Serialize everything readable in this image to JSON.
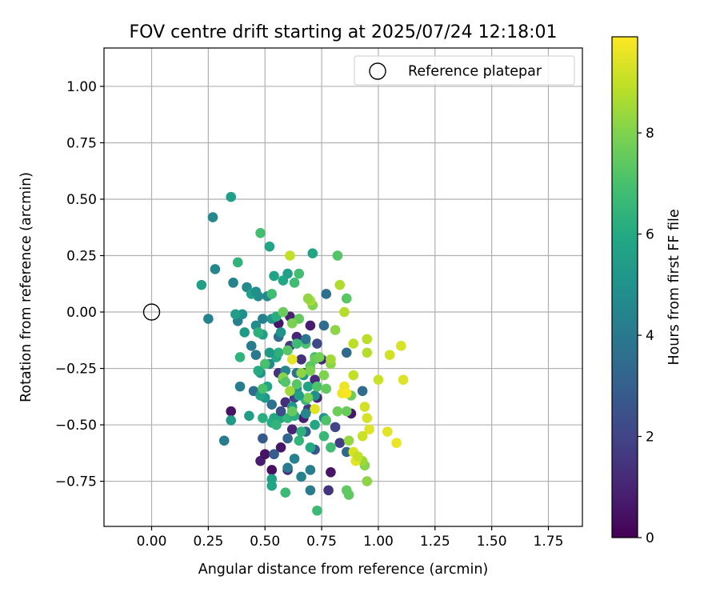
{
  "chart_data": {
    "type": "scatter",
    "title": "FOV centre drift starting at 2025/07/24 12:18:01",
    "xlabel": "Angular distance from reference (arcmin)",
    "ylabel": "Rotation from reference (arcmin)",
    "xlim": [
      -0.21,
      1.9
    ],
    "ylim": [
      -0.95,
      1.17
    ],
    "xticks": [
      0.0,
      0.25,
      0.5,
      0.75,
      1.0,
      1.25,
      1.5,
      1.75
    ],
    "xtick_labels": [
      "0.00",
      "0.25",
      "0.50",
      "0.75",
      "1.00",
      "1.25",
      "1.50",
      "1.75"
    ],
    "yticks": [
      -0.75,
      -0.5,
      -0.25,
      0.0,
      0.25,
      0.5,
      0.75,
      1.0
    ],
    "ytick_labels": [
      "−0.75",
      "−0.50",
      "−0.25",
      "0.00",
      "0.25",
      "0.50",
      "0.75",
      "1.00"
    ],
    "grid": true,
    "legend": {
      "location": "top-right",
      "entries": [
        {
          "label": "Reference platepar",
          "marker": "open-circle"
        }
      ]
    },
    "reference_point": {
      "x": 0.0,
      "y": 0.0
    },
    "colorbar": {
      "label": "Hours from first FF file",
      "colormap": "viridis",
      "range": [
        0,
        9.9
      ],
      "ticks": [
        0,
        2,
        4,
        6,
        8
      ],
      "tick_labels": [
        "0",
        "2",
        "4",
        "6",
        "8"
      ]
    },
    "series": [
      {
        "points": [
          {
            "x": 0.35,
            "y": -0.44,
            "c": 0.5
          },
          {
            "x": 0.48,
            "y": -0.66,
            "c": 0.8
          },
          {
            "x": 0.5,
            "y": -0.63,
            "c": 0.5
          },
          {
            "x": 0.53,
            "y": -0.7,
            "c": 0.4
          },
          {
            "x": 0.57,
            "y": -0.6,
            "c": 0.6
          },
          {
            "x": 0.54,
            "y": -0.48,
            "c": 0.7
          },
          {
            "x": 0.62,
            "y": -0.52,
            "c": 1.0
          },
          {
            "x": 0.6,
            "y": -0.7,
            "c": 1.2
          },
          {
            "x": 0.67,
            "y": -0.47,
            "c": 0.8
          },
          {
            "x": 0.79,
            "y": -0.71,
            "c": 0.5
          },
          {
            "x": 0.78,
            "y": -0.79,
            "c": 1.5
          },
          {
            "x": 0.88,
            "y": -0.45,
            "c": 0.6
          },
          {
            "x": 0.73,
            "y": -0.38,
            "c": 1.0
          },
          {
            "x": 0.75,
            "y": -0.21,
            "c": 1.1
          },
          {
            "x": 0.67,
            "y": -0.27,
            "c": 0.9
          },
          {
            "x": 0.58,
            "y": -0.27,
            "c": 0.7
          },
          {
            "x": 0.7,
            "y": -0.06,
            "c": 0.8
          },
          {
            "x": 0.56,
            "y": -0.05,
            "c": 0.6
          },
          {
            "x": 0.61,
            "y": -0.02,
            "c": 0.9
          },
          {
            "x": 0.64,
            "y": -0.11,
            "c": 1.1
          },
          {
            "x": 0.48,
            "y": -0.36,
            "c": 1.3
          },
          {
            "x": 0.83,
            "y": -0.58,
            "c": 1.8
          },
          {
            "x": 0.81,
            "y": -0.51,
            "c": 2.0
          },
          {
            "x": 0.61,
            "y": -0.15,
            "c": 1.6
          },
          {
            "x": 0.66,
            "y": -0.21,
            "c": 1.4
          },
          {
            "x": 0.69,
            "y": -0.43,
            "c": 1.7
          },
          {
            "x": 0.56,
            "y": -0.27,
            "c": 1.5
          },
          {
            "x": 0.63,
            "y": -0.38,
            "c": 1.9
          },
          {
            "x": 0.72,
            "y": -0.3,
            "c": 1.2
          },
          {
            "x": 0.59,
            "y": -0.4,
            "c": 1.3
          },
          {
            "x": 0.49,
            "y": -0.56,
            "c": 2.8
          },
          {
            "x": 0.54,
            "y": -0.63,
            "c": 2.9
          },
          {
            "x": 0.6,
            "y": -0.56,
            "c": 3.2
          },
          {
            "x": 0.68,
            "y": -0.53,
            "c": 3.0
          },
          {
            "x": 0.72,
            "y": -0.61,
            "c": 2.7
          },
          {
            "x": 0.86,
            "y": -0.62,
            "c": 3.3
          },
          {
            "x": 0.93,
            "y": -0.35,
            "c": 3.4
          },
          {
            "x": 0.76,
            "y": -0.06,
            "c": 3.5
          },
          {
            "x": 0.77,
            "y": 0.08,
            "c": 3.6
          },
          {
            "x": 0.86,
            "y": -0.18,
            "c": 3.4
          },
          {
            "x": 0.45,
            "y": -0.35,
            "c": 3.6
          },
          {
            "x": 0.53,
            "y": -0.41,
            "c": 3.7
          },
          {
            "x": 0.56,
            "y": -0.11,
            "c": 3.5
          },
          {
            "x": 0.64,
            "y": -0.27,
            "c": 3.8
          },
          {
            "x": 0.6,
            "y": -0.69,
            "c": 4.0
          },
          {
            "x": 0.66,
            "y": -0.73,
            "c": 4.3
          },
          {
            "x": 0.7,
            "y": -0.79,
            "c": 4.1
          },
          {
            "x": 0.7,
            "y": -0.7,
            "c": 4.2
          },
          {
            "x": 0.32,
            "y": -0.57,
            "c": 4.1
          },
          {
            "x": 0.63,
            "y": -0.65,
            "c": 4.4
          },
          {
            "x": 0.25,
            "y": -0.03,
            "c": 4.4
          },
          {
            "x": 0.38,
            "y": -0.04,
            "c": 4.3
          },
          {
            "x": 0.44,
            "y": -0.15,
            "c": 4.1
          },
          {
            "x": 0.46,
            "y": -0.19,
            "c": 4.0
          },
          {
            "x": 0.39,
            "y": -0.33,
            "c": 4.2
          },
          {
            "x": 0.49,
            "y": -0.03,
            "c": 4.3
          },
          {
            "x": 0.36,
            "y": 0.13,
            "c": 4.4
          },
          {
            "x": 0.27,
            "y": 0.42,
            "c": 4.6
          },
          {
            "x": 0.28,
            "y": 0.19,
            "c": 4.6
          },
          {
            "x": 0.42,
            "y": 0.11,
            "c": 4.7
          },
          {
            "x": 0.47,
            "y": 0.07,
            "c": 4.8
          },
          {
            "x": 0.51,
            "y": 0.07,
            "c": 4.6
          },
          {
            "x": 0.4,
            "y": -0.01,
            "c": 4.9
          },
          {
            "x": 0.46,
            "y": -0.06,
            "c": 4.7
          },
          {
            "x": 0.52,
            "y": -0.23,
            "c": 4.6
          },
          {
            "x": 0.55,
            "y": -0.2,
            "c": 4.8
          },
          {
            "x": 0.59,
            "y": -0.26,
            "c": 4.5
          },
          {
            "x": 0.64,
            "y": -0.34,
            "c": 4.7
          },
          {
            "x": 0.68,
            "y": -0.45,
            "c": 4.5
          },
          {
            "x": 0.72,
            "y": -0.37,
            "c": 4.9
          },
          {
            "x": 0.76,
            "y": -0.47,
            "c": 5.0
          },
          {
            "x": 0.57,
            "y": -0.09,
            "c": 5.0
          },
          {
            "x": 0.53,
            "y": -0.03,
            "c": 5.1
          },
          {
            "x": 0.55,
            "y": -0.5,
            "c": 5.0
          },
          {
            "x": 0.5,
            "y": -0.38,
            "c": 5.2
          },
          {
            "x": 0.48,
            "y": -0.27,
            "c": 5.1
          },
          {
            "x": 0.62,
            "y": -0.42,
            "c": 5.2
          },
          {
            "x": 0.67,
            "y": -0.28,
            "c": 5.3
          },
          {
            "x": 0.35,
            "y": -0.48,
            "c": 5.4
          },
          {
            "x": 0.43,
            "y": -0.46,
            "c": 5.5
          },
          {
            "x": 0.53,
            "y": -0.74,
            "c": 5.6
          },
          {
            "x": 0.22,
            "y": 0.12,
            "c": 5.6
          },
          {
            "x": 0.35,
            "y": 0.51,
            "c": 5.6
          },
          {
            "x": 0.37,
            "y": -0.01,
            "c": 5.5
          },
          {
            "x": 0.41,
            "y": -0.09,
            "c": 5.4
          },
          {
            "x": 0.44,
            "y": 0.08,
            "c": 5.7
          },
          {
            "x": 0.49,
            "y": -0.1,
            "c": 5.6
          },
          {
            "x": 0.52,
            "y": 0.29,
            "c": 5.8
          },
          {
            "x": 0.54,
            "y": 0.16,
            "c": 5.7
          },
          {
            "x": 0.58,
            "y": 0.14,
            "c": 5.9
          },
          {
            "x": 0.6,
            "y": 0.17,
            "c": 5.6
          },
          {
            "x": 0.55,
            "y": -0.2,
            "c": 5.9
          },
          {
            "x": 0.58,
            "y": -0.3,
            "c": 5.8
          },
          {
            "x": 0.48,
            "y": -0.37,
            "c": 5.7
          },
          {
            "x": 0.51,
            "y": -0.33,
            "c": 5.9
          },
          {
            "x": 0.71,
            "y": 0.26,
            "c": 5.8
          },
          {
            "x": 0.69,
            "y": -0.33,
            "c": 5.7
          },
          {
            "x": 0.72,
            "y": -0.5,
            "c": 5.9
          },
          {
            "x": 0.53,
            "y": -0.77,
            "c": 5.8
          },
          {
            "x": 0.54,
            "y": -0.47,
            "c": 6.0
          },
          {
            "x": 0.53,
            "y": -0.49,
            "c": 6.1
          },
          {
            "x": 0.49,
            "y": -0.47,
            "c": 6.2
          },
          {
            "x": 0.57,
            "y": -0.47,
            "c": 6.0
          },
          {
            "x": 0.55,
            "y": -0.02,
            "c": 6.2
          },
          {
            "x": 0.38,
            "y": 0.22,
            "c": 6.4
          },
          {
            "x": 0.39,
            "y": -0.2,
            "c": 6.4
          },
          {
            "x": 0.47,
            "y": -0.09,
            "c": 6.3
          },
          {
            "x": 0.6,
            "y": -0.47,
            "c": 6.5
          },
          {
            "x": 0.56,
            "y": -0.18,
            "c": 6.3
          },
          {
            "x": 0.55,
            "y": -0.5,
            "c": 6.4
          },
          {
            "x": 0.63,
            "y": -0.46,
            "c": 6.2
          },
          {
            "x": 0.65,
            "y": -0.57,
            "c": 6.5
          },
          {
            "x": 0.73,
            "y": -0.88,
            "c": 6.7
          },
          {
            "x": 0.59,
            "y": -0.8,
            "c": 6.7
          },
          {
            "x": 0.79,
            "y": -0.6,
            "c": 6.8
          },
          {
            "x": 0.64,
            "y": -0.14,
            "c": 6.7
          },
          {
            "x": 0.76,
            "y": -0.55,
            "c": 6.6
          },
          {
            "x": 0.68,
            "y": -0.39,
            "c": 6.6
          },
          {
            "x": 0.72,
            "y": -0.2,
            "c": 6.9
          },
          {
            "x": 0.48,
            "y": 0.35,
            "c": 6.9
          },
          {
            "x": 0.53,
            "y": 0.08,
            "c": 6.8
          },
          {
            "x": 0.65,
            "y": 0.17,
            "c": 6.9
          },
          {
            "x": 0.63,
            "y": 0.13,
            "c": 6.8
          },
          {
            "x": 0.49,
            "y": -0.34,
            "c": 7.0
          },
          {
            "x": 0.5,
            "y": -0.23,
            "c": 7.0
          },
          {
            "x": 0.68,
            "y": -0.14,
            "c": 7.0
          },
          {
            "x": 0.73,
            "y": -0.33,
            "c": 7.1
          },
          {
            "x": 0.77,
            "y": -0.48,
            "c": 7.1
          },
          {
            "x": 0.82,
            "y": 0.25,
            "c": 7.2
          },
          {
            "x": 0.86,
            "y": 0.06,
            "c": 7.3
          },
          {
            "x": 0.86,
            "y": -0.79,
            "c": 7.4
          },
          {
            "x": 0.87,
            "y": -0.81,
            "c": 7.4
          },
          {
            "x": 0.62,
            "y": -0.44,
            "c": 7.5
          },
          {
            "x": 0.64,
            "y": -0.32,
            "c": 7.3
          },
          {
            "x": 0.58,
            "y": 0.0,
            "c": 7.6
          },
          {
            "x": 0.72,
            "y": -0.21,
            "c": 7.6
          },
          {
            "x": 0.65,
            "y": -0.03,
            "c": 7.5
          },
          {
            "x": 0.7,
            "y": -0.24,
            "c": 7.4
          },
          {
            "x": 0.77,
            "y": -0.34,
            "c": 7.5
          },
          {
            "x": 0.86,
            "y": -0.44,
            "c": 7.6
          },
          {
            "x": 0.82,
            "y": -0.44,
            "c": 7.7
          },
          {
            "x": 0.88,
            "y": -0.37,
            "c": 7.7
          },
          {
            "x": 0.69,
            "y": -0.38,
            "c": 7.8
          },
          {
            "x": 0.62,
            "y": -0.05,
            "c": 7.9
          },
          {
            "x": 0.74,
            "y": -0.2,
            "c": 7.8
          },
          {
            "x": 0.71,
            "y": 0.03,
            "c": 8.0
          },
          {
            "x": 0.76,
            "y": -0.28,
            "c": 8.0
          },
          {
            "x": 0.79,
            "y": -0.23,
            "c": 8.1
          },
          {
            "x": 0.81,
            "y": -0.08,
            "c": 8.2
          },
          {
            "x": 0.94,
            "y": -0.68,
            "c": 8.1
          },
          {
            "x": 0.95,
            "y": -0.75,
            "c": 8.2
          },
          {
            "x": 0.87,
            "y": -0.57,
            "c": 8.3
          },
          {
            "x": 0.93,
            "y": -0.66,
            "c": 8.4
          },
          {
            "x": 0.83,
            "y": 0.12,
            "c": 8.7
          },
          {
            "x": 0.85,
            "y": 0.0,
            "c": 8.8
          },
          {
            "x": 0.89,
            "y": -0.14,
            "c": 8.9
          },
          {
            "x": 0.95,
            "y": -0.12,
            "c": 8.9
          },
          {
            "x": 0.95,
            "y": -0.18,
            "c": 8.8
          },
          {
            "x": 0.89,
            "y": -0.28,
            "c": 9.0
          },
          {
            "x": 1.0,
            "y": -0.3,
            "c": 9.1
          },
          {
            "x": 1.05,
            "y": -0.19,
            "c": 9.2
          },
          {
            "x": 1.1,
            "y": -0.15,
            "c": 9.3
          },
          {
            "x": 1.11,
            "y": -0.3,
            "c": 9.4
          },
          {
            "x": 1.04,
            "y": -0.53,
            "c": 9.5
          },
          {
            "x": 1.08,
            "y": -0.58,
            "c": 9.6
          },
          {
            "x": 0.94,
            "y": -0.42,
            "c": 9.2
          },
          {
            "x": 0.95,
            "y": -0.47,
            "c": 9.3
          },
          {
            "x": 0.96,
            "y": -0.52,
            "c": 9.4
          },
          {
            "x": 0.93,
            "y": -0.55,
            "c": 9.1
          },
          {
            "x": 0.89,
            "y": -0.62,
            "c": 9.3
          },
          {
            "x": 0.9,
            "y": -0.66,
            "c": 9.5
          },
          {
            "x": 0.91,
            "y": -0.64,
            "c": 9.0
          },
          {
            "x": 0.84,
            "y": -0.36,
            "c": 9.7
          },
          {
            "x": 0.85,
            "y": -0.33,
            "c": 9.6
          },
          {
            "x": 0.86,
            "y": -0.36,
            "c": 9.8
          },
          {
            "x": 0.61,
            "y": 0.25,
            "c": 9.0
          },
          {
            "x": 0.62,
            "y": -0.21,
            "c": 9.5
          },
          {
            "x": 0.72,
            "y": -0.43,
            "c": 9.4
          },
          {
            "x": 0.7,
            "y": 0.05,
            "c": 8.6
          },
          {
            "x": 0.61,
            "y": -0.35,
            "c": 8.5
          },
          {
            "x": 0.69,
            "y": 0.06,
            "c": 8.3
          },
          {
            "x": 0.79,
            "y": -0.21,
            "c": 8.5
          },
          {
            "x": 0.66,
            "y": -0.27,
            "c": 8.2
          },
          {
            "x": 0.58,
            "y": -0.29,
            "c": 8.1
          },
          {
            "x": 0.7,
            "y": -0.26,
            "c": 7.9
          },
          {
            "x": 0.6,
            "y": -0.17,
            "c": 7.3
          },
          {
            "x": 0.59,
            "y": -0.31,
            "c": 7.2
          },
          {
            "x": 0.47,
            "y": -0.26,
            "c": 6.1
          },
          {
            "x": 0.66,
            "y": -0.53,
            "c": 6.3
          },
          {
            "x": 0.7,
            "y": -0.6,
            "c": 6.0
          },
          {
            "x": 0.65,
            "y": -0.37,
            "c": 5.5
          },
          {
            "x": 0.52,
            "y": -0.18,
            "c": 5.3
          },
          {
            "x": 0.46,
            "y": 0.09,
            "c": 4.9
          },
          {
            "x": 0.68,
            "y": -0.12,
            "c": 3.9
          },
          {
            "x": 0.73,
            "y": -0.14,
            "c": 2.2
          },
          {
            "x": 0.57,
            "y": -0.44,
            "c": 2.4
          }
        ]
      }
    ]
  }
}
